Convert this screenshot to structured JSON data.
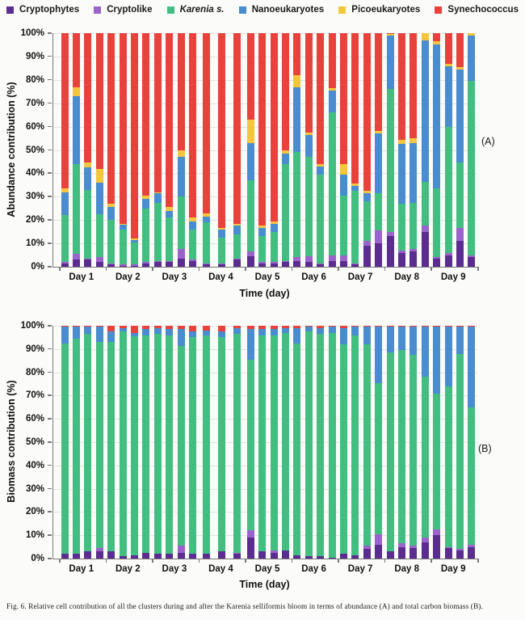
{
  "legend": {
    "items": [
      {
        "label": "Cryptophytes",
        "color": "#5b2d90",
        "italic": false
      },
      {
        "label": "Cryptolike",
        "color": "#9b64cc",
        "italic": false
      },
      {
        "label": "Karenia s.",
        "color": "#42be81",
        "italic": true
      },
      {
        "label": "Nanoeukaryotes",
        "color": "#4a8cd0",
        "italic": false
      },
      {
        "label": "Picoeukaryotes",
        "color": "#f5c53d",
        "italic": false
      },
      {
        "label": "Synechococcus",
        "color": "#e8423c",
        "italic": false
      }
    ]
  },
  "caption": "Fig. 6.  Relative cell contribution of all the clusters during and after the Karenia selliformis bloom in terms of abundance (A) and total carbon biomass (B).",
  "chart_data": [
    {
      "type": "bar",
      "subtype": "stacked_percent",
      "panel_label": "(A)",
      "ylabel": "Abundance contribution (%)",
      "xlabel": "Time (day)",
      "ylim": [
        0,
        100
      ],
      "ytick_step": 10,
      "ytick_suffix": "%",
      "grid": true,
      "legend_position": "top",
      "series_names": [
        "Cryptophytes",
        "Cryptolike",
        "Karenia s.",
        "Nanoeukaryotes",
        "Picoeukaryotes",
        "Synechococcus"
      ],
      "days": [
        {
          "label": "Day 1",
          "bars": [
            [
              1.5,
              0.5,
              20.0,
              10.0,
              1.5,
              66.5
            ],
            [
              3.0,
              2.5,
              38.5,
              29.0,
              4.0,
              23.0
            ],
            [
              3.0,
              0.5,
              29.5,
              9.5,
              2.0,
              55.5
            ],
            [
              2.0,
              2.0,
              18.5,
              13.5,
              6.0,
              58.0
            ]
          ]
        },
        {
          "label": "Day 2",
          "bars": [
            [
              1.0,
              0.5,
              18.5,
              5.5,
              1.5,
              73.0
            ],
            [
              0.5,
              0.5,
              15.0,
              2.0,
              0.5,
              81.5
            ],
            [
              0.5,
              0.5,
              9.5,
              1.0,
              0.5,
              88.0
            ],
            [
              1.5,
              0.5,
              23.0,
              4.0,
              1.5,
              69.5
            ]
          ]
        },
        {
          "label": "Day 3",
          "bars": [
            [
              2.0,
              0.5,
              25.0,
              4.0,
              0.5,
              68.0
            ],
            [
              2.0,
              0.5,
              18.5,
              3.0,
              1.5,
              74.5
            ],
            [
              3.5,
              4.0,
              22.5,
              17.0,
              3.0,
              50.0
            ],
            [
              2.5,
              0.5,
              13.0,
              3.5,
              1.5,
              79.0
            ]
          ]
        },
        {
          "label": "Day 4",
          "bars": [
            [
              1.0,
              0.5,
              17.5,
              2.5,
              1.5,
              77.0
            ],
            [
              1.0,
              0.5,
              11.0,
              3.5,
              0.5,
              83.5
            ],
            [
              3.0,
              0.5,
              10.5,
              3.5,
              1.0,
              81.5
            ]
          ]
        },
        {
          "label": "Day 5",
          "bars": [
            [
              4.5,
              2.0,
              30.5,
              16.0,
              10.0,
              37.0
            ],
            [
              1.5,
              0.5,
              11.0,
              3.5,
              1.0,
              82.5
            ],
            [
              1.5,
              0.5,
              13.0,
              3.5,
              1.0,
              80.5
            ],
            [
              2.0,
              0.5,
              41.5,
              4.5,
              1.5,
              50.0
            ]
          ]
        },
        {
          "label": "Day 6",
          "bars": [
            [
              2.5,
              1.5,
              45.0,
              28.0,
              5.0,
              18.0
            ],
            [
              2.0,
              2.5,
              42.5,
              9.5,
              1.0,
              42.5
            ],
            [
              1.0,
              0.5,
              38.0,
              3.5,
              1.0,
              56.0
            ],
            [
              2.5,
              2.5,
              61.0,
              9.5,
              1.0,
              23.5
            ]
          ]
        },
        {
          "label": "Day 7",
          "bars": [
            [
              2.5,
              2.5,
              25.5,
              9.0,
              4.5,
              56.0
            ],
            [
              1.0,
              0.5,
              31.0,
              2.0,
              1.0,
              64.5
            ],
            [
              9.0,
              2.0,
              17.0,
              3.5,
              1.0,
              67.5
            ],
            [
              10.0,
              5.5,
              16.0,
              25.5,
              1.0,
              42.0
            ]
          ]
        },
        {
          "label": "Day 8",
          "bars": [
            [
              13.0,
              2.0,
              61.0,
              23.0,
              0.5,
              0.5
            ],
            [
              6.0,
              1.0,
              20.0,
              25.5,
              2.0,
              45.5
            ],
            [
              6.5,
              1.0,
              20.0,
              25.5,
              2.0,
              45.0
            ],
            [
              15.0,
              2.5,
              19.0,
              60.5,
              3.0,
              0.0
            ]
          ]
        },
        {
          "label": "Day 9",
          "bars": [
            [
              3.5,
              0.5,
              29.5,
              61.5,
              1.5,
              3.5
            ],
            [
              5.0,
              1.0,
              54.0,
              26.0,
              1.0,
              13.0
            ],
            [
              11.0,
              5.5,
              28.0,
              40.0,
              1.0,
              14.5
            ],
            [
              4.0,
              1.0,
              74.5,
              19.5,
              1.0,
              0.0
            ]
          ]
        }
      ]
    },
    {
      "type": "bar",
      "subtype": "stacked_percent",
      "panel_label": "(B)",
      "ylabel": "Biomass contribution (%)",
      "xlabel": "Time (day)",
      "ylim": [
        0,
        100
      ],
      "ytick_step": 10,
      "ytick_suffix": "%",
      "grid": true,
      "legend_position": "top",
      "series_names": [
        "Cryptophytes",
        "Cryptolike",
        "Karenia s.",
        "Nanoeukaryotes",
        "Picoeukaryotes",
        "Synechococcus"
      ],
      "days": [
        {
          "label": "Day 1",
          "bars": [
            [
              2.0,
              0.0,
              90.5,
              7.0,
              0.0,
              0.5
            ],
            [
              2.0,
              0.0,
              92.5,
              5.0,
              0.0,
              0.5
            ],
            [
              3.0,
              0.0,
              93.5,
              3.0,
              0.0,
              0.5
            ],
            [
              3.0,
              1.5,
              88.5,
              6.5,
              0.0,
              0.5
            ]
          ]
        },
        {
          "label": "Day 2",
          "bars": [
            [
              3.0,
              0.0,
              90.0,
              4.5,
              0.0,
              2.5
            ],
            [
              1.0,
              0.0,
              96.5,
              1.5,
              0.0,
              1.0
            ],
            [
              1.5,
              0.0,
              94.0,
              1.5,
              0.0,
              3.0
            ],
            [
              2.5,
              0.0,
              93.5,
              2.5,
              0.0,
              1.5
            ]
          ]
        },
        {
          "label": "Day 3",
          "bars": [
            [
              2.0,
              0.0,
              94.5,
              2.5,
              0.0,
              1.0
            ],
            [
              2.0,
              0.0,
              94.0,
              2.5,
              0.0,
              1.5
            ],
            [
              2.5,
              3.0,
              86.0,
              7.0,
              0.0,
              1.5
            ],
            [
              2.0,
              0.0,
              93.0,
              2.5,
              0.0,
              2.5
            ]
          ]
        },
        {
          "label": "Day 4",
          "bars": [
            [
              2.0,
              0.0,
              94.0,
              2.0,
              0.0,
              2.0
            ],
            [
              3.0,
              0.0,
              92.0,
              2.5,
              0.0,
              2.5
            ],
            [
              2.0,
              0.5,
              94.0,
              2.5,
              0.0,
              1.0
            ]
          ]
        },
        {
          "label": "Day 5",
          "bars": [
            [
              9.0,
              3.0,
              73.5,
              13.0,
              0.0,
              1.5
            ],
            [
              3.0,
              0.0,
              93.0,
              2.5,
              0.0,
              1.5
            ],
            [
              2.5,
              1.0,
              92.5,
              2.5,
              0.0,
              1.5
            ],
            [
              3.5,
              0.0,
              93.5,
              2.0,
              0.0,
              1.0
            ]
          ]
        },
        {
          "label": "Day 6",
          "bars": [
            [
              1.5,
              0.0,
              91.0,
              6.5,
              0.0,
              1.0
            ],
            [
              1.0,
              0.0,
              96.5,
              2.0,
              0.0,
              0.5
            ],
            [
              1.0,
              0.0,
              95.5,
              2.5,
              0.0,
              1.0
            ],
            [
              0.5,
              0.0,
              96.5,
              2.5,
              0.0,
              0.5
            ]
          ]
        },
        {
          "label": "Day 7",
          "bars": [
            [
              2.0,
              0.0,
              90.0,
              7.0,
              0.0,
              1.0
            ],
            [
              1.5,
              0.0,
              94.5,
              3.5,
              0.0,
              0.5
            ],
            [
              4.0,
              1.5,
              86.5,
              7.5,
              0.0,
              0.5
            ],
            [
              6.0,
              4.5,
              65.0,
              24.0,
              0.0,
              0.5
            ]
          ]
        },
        {
          "label": "Day 8",
          "bars": [
            [
              3.0,
              0.0,
              85.5,
              11.0,
              0.0,
              0.5
            ],
            [
              5.0,
              1.5,
              83.0,
              10.0,
              0.0,
              0.5
            ],
            [
              4.5,
              1.0,
              82.0,
              12.0,
              0.0,
              0.5
            ],
            [
              7.0,
              2.0,
              69.0,
              21.5,
              0.0,
              0.5
            ]
          ]
        },
        {
          "label": "Day 9",
          "bars": [
            [
              10.0,
              2.5,
              58.5,
              28.5,
              0.0,
              0.5
            ],
            [
              4.5,
              0.5,
              69.0,
              25.5,
              0.0,
              0.5
            ],
            [
              3.5,
              0.5,
              84.0,
              11.5,
              0.0,
              0.5
            ],
            [
              5.0,
              1.0,
              59.0,
              34.5,
              0.0,
              0.5
            ]
          ]
        }
      ]
    }
  ]
}
